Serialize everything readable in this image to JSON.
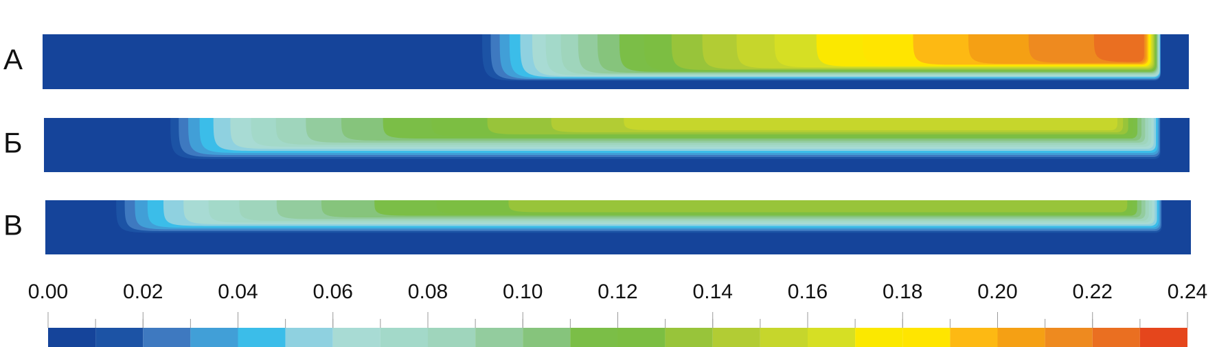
{
  "chart_data": {
    "type": "colorbar",
    "panels": [
      "А",
      "Б",
      "В"
    ],
    "bins": [
      0,
      0.01,
      0.02,
      0.03,
      0.04,
      0.05,
      0.06,
      0.07,
      0.08,
      0.09,
      0.1,
      0.11,
      0.12,
      0.13,
      0.14,
      0.15,
      0.16,
      0.17,
      0.18,
      0.19,
      0.2,
      0.21,
      0.22,
      0.23,
      0.24
    ],
    "colors": [
      "#15449a",
      "#1c53a5",
      "#3e79c0",
      "#419fd7",
      "#3bbde9",
      "#8fd1e0",
      "#a8dbd4",
      "#a3d9c9",
      "#9fd5bc",
      "#93cc9e",
      "#86c47c",
      "#7bbe47",
      "#7cbe42",
      "#98c43a",
      "#b2cc34",
      "#c6d62c",
      "#d6df24",
      "#fbe800",
      "#ffe500",
      "#fdb913",
      "#f5a014",
      "#ee8a1f",
      "#ea6f21",
      "#e5461c"
    ],
    "xlim": [
      0,
      0.24
    ],
    "xticks": [
      {
        "value": 0,
        "label": "0.00"
      },
      {
        "value": 0.02,
        "label": "0.02"
      },
      {
        "value": 0.04,
        "label": "0.04"
      },
      {
        "value": 0.06,
        "label": "0.06"
      },
      {
        "value": 0.08,
        "label": "0.08"
      },
      {
        "value": 0.1,
        "label": "0.10"
      },
      {
        "value": 0.12,
        "label": "0.12"
      },
      {
        "value": 0.14,
        "label": "0.14"
      },
      {
        "value": 0.16,
        "label": "0.16"
      },
      {
        "value": 0.18,
        "label": "0.18"
      },
      {
        "value": 0.2,
        "label": "0.20"
      },
      {
        "value": 0.22,
        "label": "0.22"
      },
      {
        "value": 0.24,
        "label": "0.24"
      }
    ]
  }
}
